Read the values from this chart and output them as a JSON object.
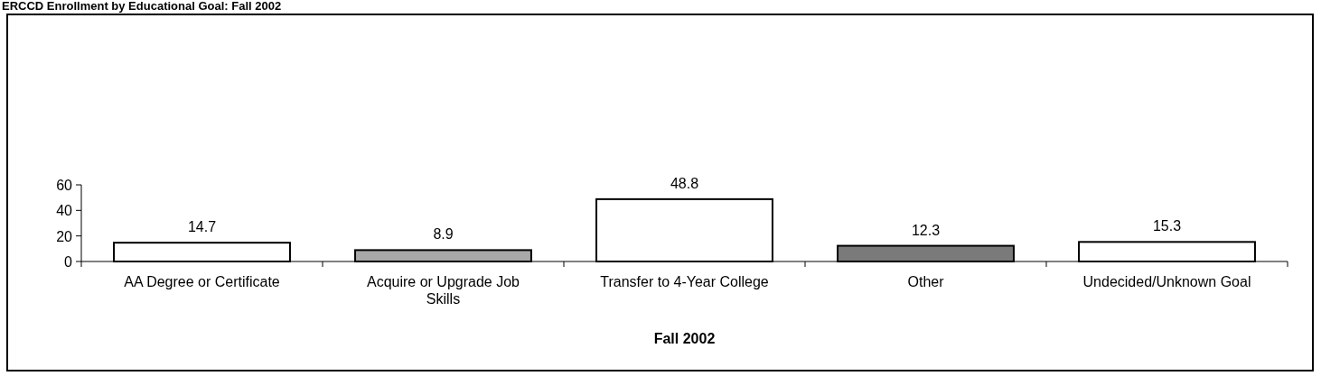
{
  "chart_data": {
    "type": "bar",
    "title": "ERCCD Enrollment by Educational Goal: Fall 2002",
    "xlabel": "Fall 2002",
    "categories": [
      "AA Degree or Certificate",
      "Acquire or Upgrade Job Skills",
      "Transfer to 4-Year College",
      "Other",
      "Undecided/Unknown Goal"
    ],
    "values": [
      14.7,
      8.9,
      48.8,
      12.3,
      15.3
    ],
    "colors": [
      "#ffffff",
      "#a8a8a8",
      "#ffffff",
      "#7a7a7a",
      "#ffffff"
    ],
    "ylim": [
      0,
      60
    ],
    "yticks": [
      0,
      20,
      40,
      60
    ],
    "data_labels": true,
    "grid": false
  }
}
